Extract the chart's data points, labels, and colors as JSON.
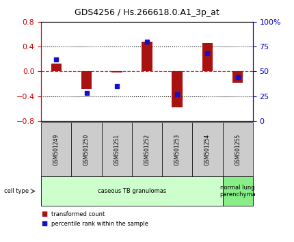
{
  "title": "GDS4256 / Hs.266618.0.A1_3p_at",
  "samples": [
    "GSM501249",
    "GSM501250",
    "GSM501251",
    "GSM501252",
    "GSM501253",
    "GSM501254",
    "GSM501255"
  ],
  "transformed_count": [
    0.13,
    -0.28,
    -0.02,
    0.48,
    -0.58,
    0.46,
    -0.18
  ],
  "percentile_rank_raw": [
    62,
    28,
    35,
    80,
    27,
    68,
    44
  ],
  "ylim_left": [
    -0.8,
    0.8
  ],
  "ylim_right": [
    0,
    100
  ],
  "yticks_left": [
    -0.8,
    -0.4,
    0.0,
    0.4,
    0.8
  ],
  "yticks_right": [
    0,
    25,
    50,
    75,
    100
  ],
  "ytick_labels_right": [
    "0",
    "25",
    "50",
    "75",
    "100%"
  ],
  "bar_color": "#aa1111",
  "dot_color": "#1111cc",
  "hline_color": "#cc2222",
  "grid_color": "#000000",
  "legend_bar_label": "transformed count",
  "legend_dot_label": "percentile rank within the sample",
  "bar_width": 0.35,
  "background_color": "#ffffff",
  "plot_bg": "#ffffff",
  "sample_bg": "#cccccc",
  "ct_configs": [
    {
      "start": 0,
      "end": 5,
      "label": "caseous TB granulomas",
      "color": "#ccffcc"
    },
    {
      "start": 6,
      "end": 6,
      "label": "normal lung\nparenchyma",
      "color": "#88ee88"
    }
  ]
}
